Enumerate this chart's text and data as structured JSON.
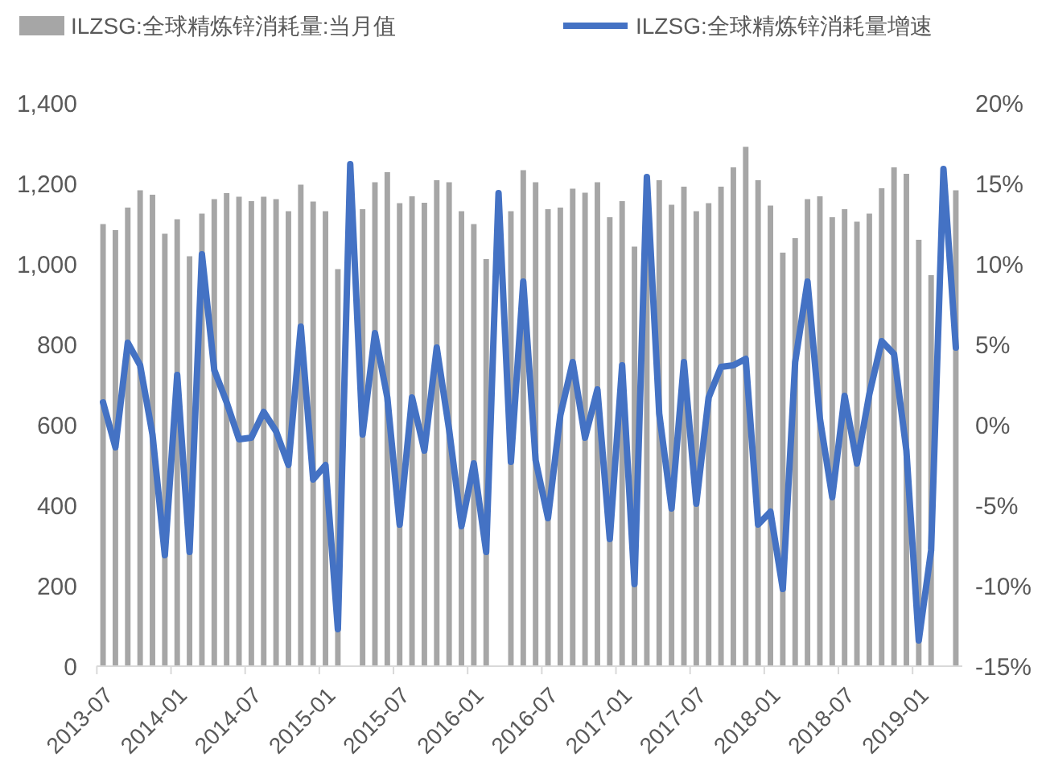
{
  "chart_data": {
    "type": "bar",
    "legend": "top",
    "categories": [
      "2013-07",
      null,
      null,
      null,
      null,
      null,
      "2014-01",
      null,
      null,
      null,
      null,
      null,
      "2014-07",
      null,
      null,
      null,
      null,
      null,
      "2015-01",
      null,
      null,
      null,
      null,
      null,
      "2015-07",
      null,
      null,
      null,
      null,
      null,
      "2016-01",
      null,
      null,
      null,
      null,
      null,
      "2016-07",
      null,
      null,
      null,
      null,
      null,
      "2017-01",
      null,
      null,
      null,
      null,
      null,
      "2017-07",
      null,
      null,
      null,
      null,
      null,
      "2018-01",
      null,
      null,
      null,
      null,
      null,
      "2018-07",
      null,
      null,
      null,
      null,
      null,
      "2019-01",
      null,
      null,
      null
    ],
    "series": [
      {
        "name": "ILZSG:全球精炼锌消耗量:当月值",
        "color": "#a6a6a6",
        "values": [
          1099,
          1084,
          1140,
          1183,
          1172,
          1075,
          1111,
          1019,
          1125,
          1161,
          1176,
          1167,
          1156,
          1167,
          1161,
          1131,
          1197,
          1155,
          1131,
          987,
          null,
          1136,
          1203,
          1228,
          1151,
          1168,
          1152,
          1208,
          1203,
          1131,
          1099,
          1012,
          null,
          1131,
          1233,
          1203,
          1136,
          1140,
          1187,
          1177,
          1203,
          1116,
          1156,
          1043,
          1220,
          1208,
          1147,
          1192,
          1131,
          1151,
          1192,
          1240,
          1291,
          1208,
          1145,
          1028,
          1064,
          1161,
          1168,
          1116,
          1136,
          1105,
          1125,
          1188,
          1240,
          1224,
          1060,
          972,
          null,
          1183
        ]
      },
      {
        "name": "ILZSG:全球精炼锌消耗量增速",
        "type": "line",
        "axis": "y2",
        "color": "#4472c4",
        "values": [
          1.4,
          -1.4,
          5.1,
          3.7,
          -0.6,
          -8.1,
          3.1,
          -7.9,
          10.6,
          3.4,
          1.4,
          -0.9,
          -0.8,
          0.8,
          -0.4,
          -2.5,
          6.1,
          -3.4,
          -2.5,
          -12.7,
          16.2,
          -0.6,
          5.7,
          1.7,
          -6.2,
          1.7,
          -1.6,
          4.8,
          -0.3,
          -6.3,
          -2.4,
          -7.9,
          14.4,
          -2.3,
          8.9,
          -2.2,
          -5.8,
          0.6,
          3.9,
          -0.8,
          2.2,
          -7.1,
          3.7,
          -9.9,
          15.4,
          0.7,
          -5.2,
          3.9,
          -4.9,
          1.7,
          3.6,
          3.7,
          4.1,
          -6.2,
          -5.4,
          -10.2,
          3.9,
          8.9,
          0.4,
          -4.5,
          1.8,
          -2.4,
          1.9,
          5.2,
          4.4,
          -1.6,
          -13.4,
          -7.8,
          15.9,
          4.8
        ]
      }
    ],
    "ylim": [
      0,
      1400
    ],
    "yticks": [
      0,
      {
        "value": 200,
        "label": "200"
      },
      {
        "value": 400,
        "label": "400"
      },
      {
        "value": 600,
        "label": "600"
      },
      {
        "value": 800,
        "label": "800"
      },
      {
        "value": 1000,
        "label": "1,000"
      },
      {
        "value": 1200,
        "label": "1,200"
      },
      {
        "value": 1400,
        "label": "1,400"
      }
    ],
    "y2lim": [
      -15,
      20
    ],
    "y2ticks": [
      {
        "value": -15,
        "label": "-15%"
      },
      {
        "value": -10,
        "label": "-10%"
      },
      {
        "value": -5,
        "label": "-5%"
      },
      {
        "value": 0,
        "label": "0%"
      },
      {
        "value": 5,
        "label": "5%"
      },
      {
        "value": 10,
        "label": "10%"
      },
      {
        "value": 15,
        "label": "15%"
      },
      {
        "value": 20,
        "label": "20%"
      }
    ]
  }
}
